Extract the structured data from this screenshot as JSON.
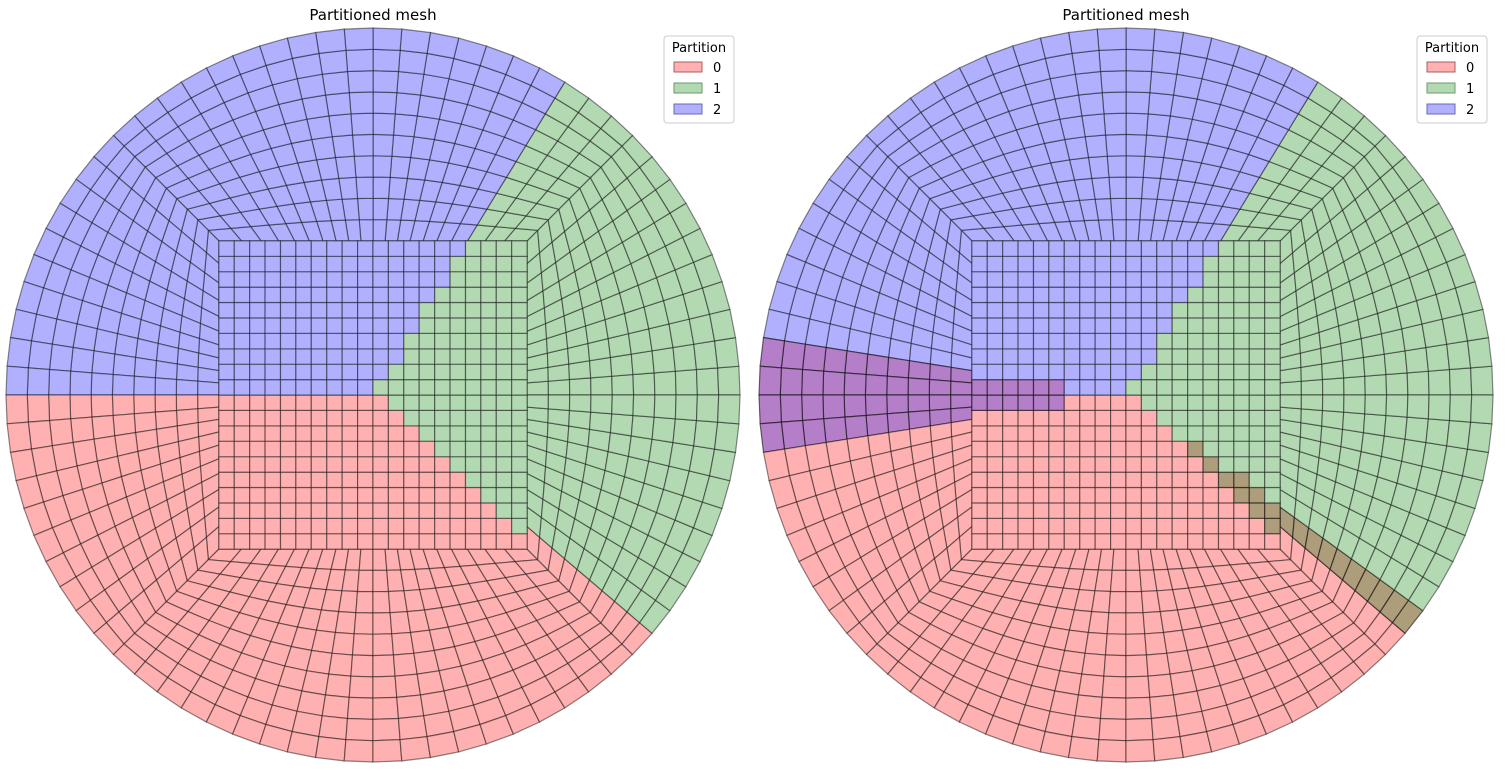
{
  "colors": {
    "partition_0": "#ffb0b0",
    "partition_1": "#b3d9b3",
    "partition_2": "#b0b0ff",
    "ghost_2_over_1": "#7a96c8",
    "ghost_0_over_1": "#ae9d7a",
    "ghost_over_0": "#b47fc8",
    "mesh_line": "#000000"
  },
  "panels": [
    {
      "title": "Partitioned mesh",
      "legend": {
        "title": "Partition",
        "entries": [
          "0",
          "1",
          "2"
        ]
      },
      "ghost_layers": false
    },
    {
      "title": "Partitioned mesh",
      "legend": {
        "title": "Partition",
        "entries": [
          "0",
          "1",
          "2"
        ]
      },
      "ghost_layers": true
    }
  ]
}
